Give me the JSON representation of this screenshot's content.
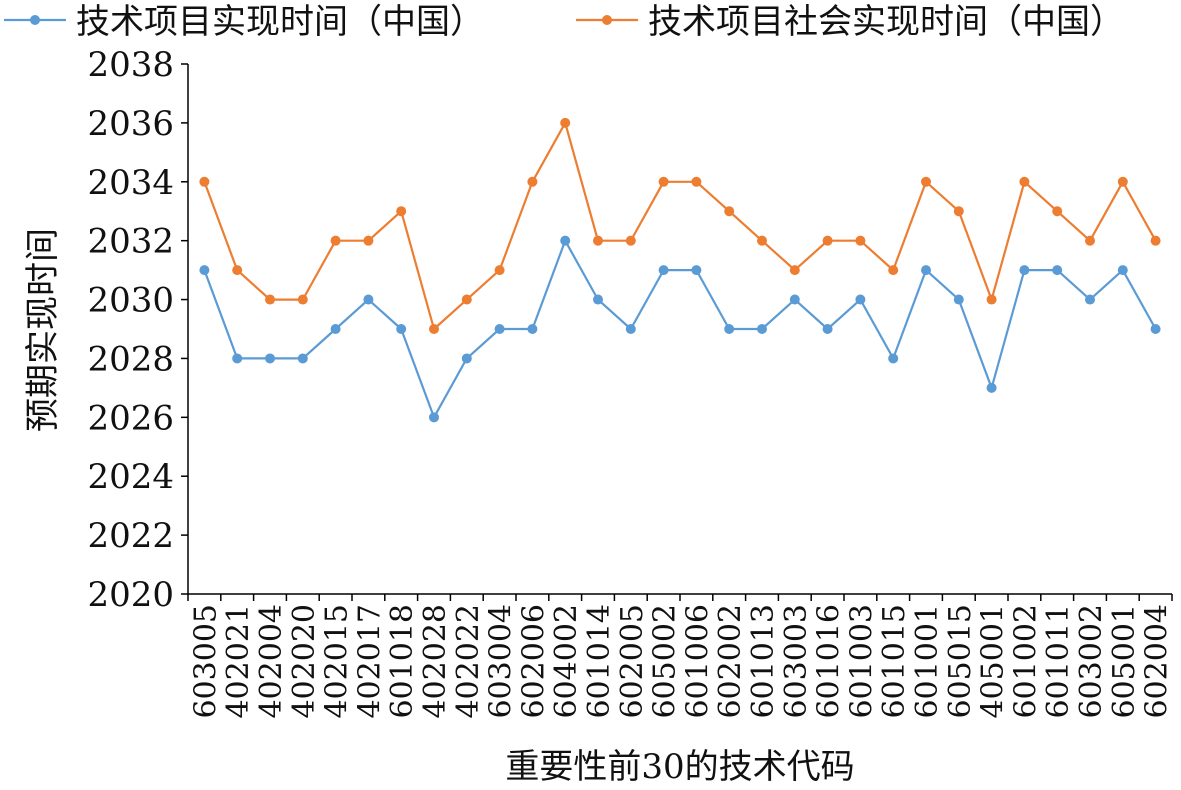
{
  "chart_data": {
    "type": "line",
    "title": "",
    "xlabel": "重要性前30的技术代码",
    "ylabel": "预期实现时间",
    "ylim": [
      2020,
      2038
    ],
    "yticks": [
      "2020",
      "2022",
      "2024",
      "2026",
      "2028",
      "2030",
      "2032",
      "2034",
      "2036",
      "2038"
    ],
    "grid": false,
    "legend_position": "top",
    "categories": [
      "603005",
      "402021",
      "402004",
      "402020",
      "402015",
      "402017",
      "601018",
      "402028",
      "402022",
      "603004",
      "602006",
      "604002",
      "601014",
      "602005",
      "605002",
      "601006",
      "602002",
      "601013",
      "603003",
      "601016",
      "601003",
      "601015",
      "601001",
      "605015",
      "405001",
      "601002",
      "601011",
      "603002",
      "605001",
      "602004"
    ],
    "series": [
      {
        "name": "技术项目实现时间（中国）",
        "color": "#5B9BD5",
        "values": [
          2031,
          2028,
          2028,
          2028,
          2029,
          2030,
          2029,
          2026,
          2028,
          2029,
          2029,
          2032,
          2030,
          2029,
          2031,
          2031,
          2029,
          2029,
          2030,
          2029,
          2030,
          2028,
          2031,
          2030,
          2027,
          2031,
          2031,
          2030,
          2031,
          2029
        ]
      },
      {
        "name": "技术项目社会实现时间（中国）",
        "color": "#ED7D31",
        "values": [
          2034,
          2031,
          2030,
          2030,
          2032,
          2032,
          2033,
          2029,
          2030,
          2031,
          2034,
          2036,
          2032,
          2032,
          2034,
          2034,
          2033,
          2032,
          2031,
          2032,
          2032,
          2031,
          2034,
          2033,
          2030,
          2034,
          2033,
          2032,
          2034,
          2032
        ]
      }
    ]
  }
}
